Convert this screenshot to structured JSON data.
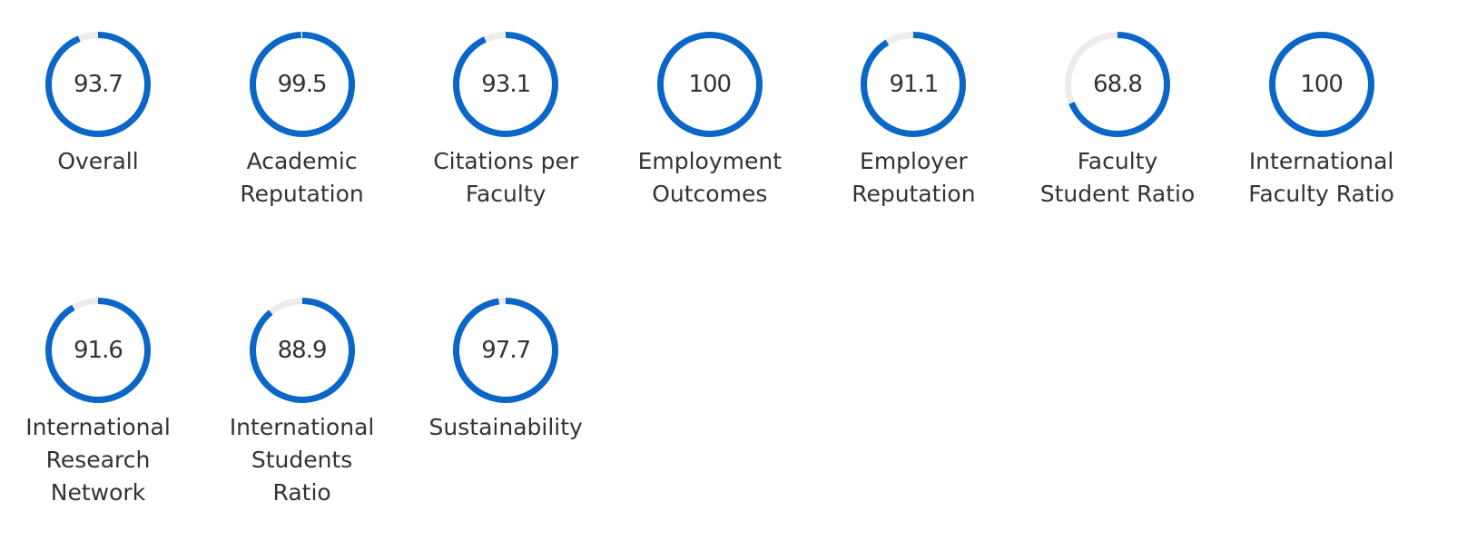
{
  "colors": {
    "ring_fill": "#0a66c8",
    "ring_track": "#ececec"
  },
  "chart_data": {
    "type": "donut",
    "title": "",
    "series": [
      {
        "name": "Overall",
        "label": "Overall",
        "value": 93.7,
        "display": "93.7",
        "max": 100
      },
      {
        "name": "Academic Reputation",
        "label": "Academic\nReputation",
        "value": 99.5,
        "display": "99.5",
        "max": 100
      },
      {
        "name": "Citations per Faculty",
        "label": "Citations per\nFaculty",
        "value": 93.1,
        "display": "93.1",
        "max": 100
      },
      {
        "name": "Employment Outcomes",
        "label": "Employment\nOutcomes",
        "value": 100,
        "display": "100",
        "max": 100
      },
      {
        "name": "Employer Reputation",
        "label": "Employer\nReputation",
        "value": 91.1,
        "display": "91.1",
        "max": 100
      },
      {
        "name": "Faculty Student Ratio",
        "label": "Faculty\nStudent Ratio",
        "value": 68.8,
        "display": "68.8",
        "max": 100
      },
      {
        "name": "International Faculty Ratio",
        "label": "International\nFaculty Ratio",
        "value": 100,
        "display": "100",
        "max": 100
      },
      {
        "name": "International Research Network",
        "label": "International\nResearch\nNetwork",
        "value": 91.6,
        "display": "91.6",
        "max": 100
      },
      {
        "name": "International Students Ratio",
        "label": "International\nStudents\nRatio",
        "value": 88.9,
        "display": "88.9",
        "max": 100
      },
      {
        "name": "Sustainability",
        "label": "Sustainability",
        "value": 97.7,
        "display": "97.7",
        "max": 100
      }
    ]
  }
}
